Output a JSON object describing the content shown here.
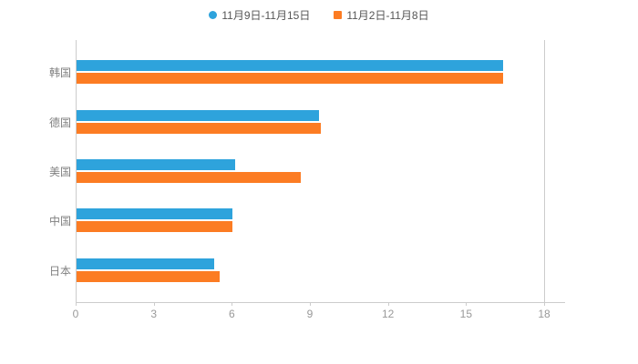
{
  "chart_data": {
    "type": "bar",
    "orientation": "horizontal",
    "title": "",
    "categories": [
      "韩国",
      "德国",
      "美国",
      "中国",
      "日本"
    ],
    "series": [
      {
        "name": "11月9日-11月15日",
        "color": "#2EA3DC",
        "values": [
          16.4,
          9.3,
          6.1,
          6.0,
          5.3
        ]
      },
      {
        "name": "11月2日-11月8日",
        "color": "#FC7C23",
        "values": [
          16.4,
          9.4,
          8.6,
          6.0,
          5.5
        ]
      }
    ],
    "xlim": [
      0,
      18
    ],
    "xticks": [
      0,
      3,
      6,
      9,
      12,
      15,
      18
    ],
    "grid": false,
    "legend_position": "top",
    "legend_markers": [
      "circle",
      "square"
    ],
    "axis_color": "#cccccc",
    "tick_label_color": "#999999",
    "category_label_color": "#808080",
    "background": "#ffffff"
  }
}
